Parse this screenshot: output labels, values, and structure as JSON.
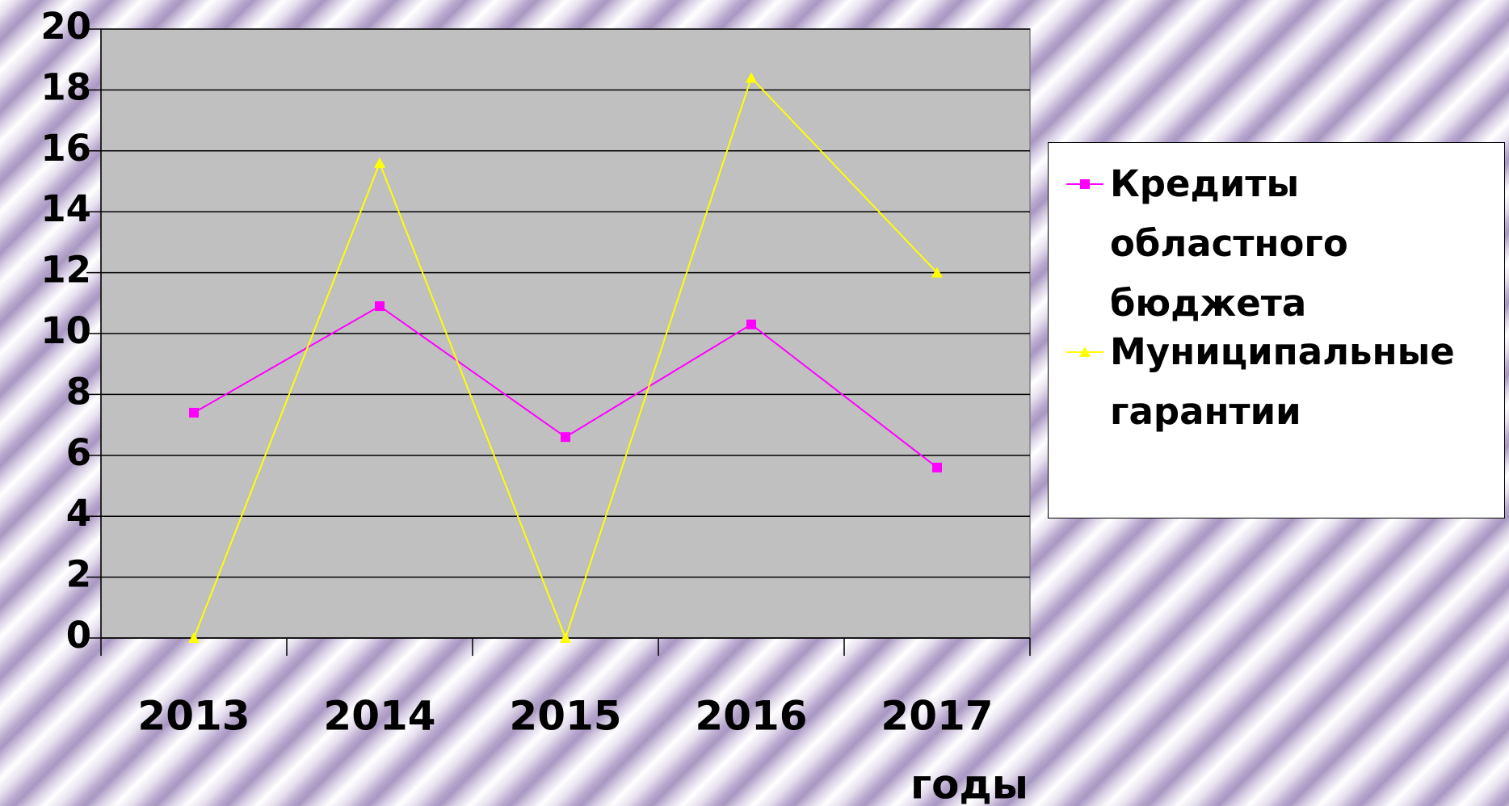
{
  "chart_data": {
    "type": "line",
    "categories": [
      "2013",
      "2014",
      "2015",
      "2016",
      "2017"
    ],
    "x_label": "годы",
    "series": [
      {
        "name": "Кредиты областного бюджета",
        "color": "#ff00ff",
        "marker": "square",
        "values": [
          7.4,
          10.9,
          6.6,
          10.3,
          5.6
        ]
      },
      {
        "name": "Муниципальные гарантии",
        "color": "#ffff00",
        "marker": "triangle",
        "values": [
          0,
          15.6,
          0,
          18.4,
          12.0
        ]
      }
    ],
    "ylim": [
      0,
      20
    ],
    "yticks": [
      0,
      2,
      4,
      6,
      8,
      10,
      12,
      14,
      16,
      18,
      20
    ],
    "grid": true,
    "legend": "right"
  }
}
